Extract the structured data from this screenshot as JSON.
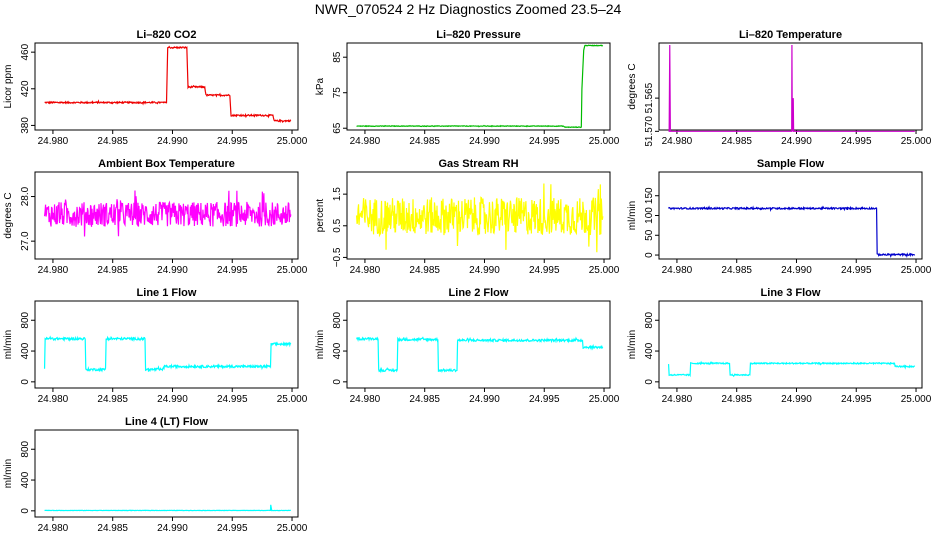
{
  "title": "NWR_070524  2 Hz Diagnostics Zoomed 23.5–24",
  "chart_data": [
    {
      "type": "line",
      "title": "Li–820 CO2",
      "ylabel": "Licor ppm",
      "color": "#ee0000",
      "xlim": [
        24.9785,
        25.0005
      ],
      "ylim": [
        375,
        470
      ],
      "xticks": [
        24.98,
        24.985,
        24.99,
        24.995,
        25.0
      ],
      "xticklabels": [
        "24.980",
        "24.985",
        "24.990",
        "24.995",
        "25.000"
      ],
      "yticks": [
        380,
        420,
        460
      ],
      "yticklabels": [
        "380",
        "420",
        "460"
      ],
      "series": [
        {
          "x": [
            24.9793,
            24.9895,
            24.9896,
            24.9912,
            24.9913,
            24.9927,
            24.9928,
            24.9948,
            24.9949,
            24.9984,
            24.9985,
            24.9999
          ],
          "y": [
            405,
            405,
            465,
            465,
            422,
            422,
            413,
            413,
            391,
            391,
            385,
            385
          ],
          "noise": 0.8
        }
      ]
    },
    {
      "type": "line",
      "title": "Li–820 Pressure",
      "ylabel": "kPa",
      "color": "#00bb00",
      "xlim": [
        24.9785,
        25.0005
      ],
      "ylim": [
        64.5,
        89
      ],
      "xticks": [
        24.98,
        24.985,
        24.99,
        24.995,
        25.0
      ],
      "xticklabels": [
        "24.980",
        "24.985",
        "24.990",
        "24.995",
        "25.000"
      ],
      "yticks": [
        65,
        75,
        85
      ],
      "yticklabels": [
        "65",
        "75",
        "85"
      ],
      "series": [
        {
          "x": [
            24.9793,
            24.9966,
            24.9967,
            24.9981,
            24.99815,
            24.9983,
            24.9984,
            24.9999
          ],
          "y": [
            65.6,
            65.6,
            65.3,
            65.3,
            76,
            87,
            88.3,
            88.3
          ],
          "noise": 0.08
        }
      ]
    },
    {
      "type": "line",
      "title": "Li–820 Temperature",
      "ylabel": "degrees C",
      "color": "#cc00cc",
      "xlim": [
        24.9785,
        25.0005
      ],
      "ylim": [
        51.5698,
        51.5567
      ],
      "xticks": [
        24.98,
        24.985,
        24.99,
        24.995,
        25.0
      ],
      "xticklabels": [
        "24.980",
        "24.985",
        "24.990",
        "24.995",
        "25.000"
      ],
      "yticks": [
        51.57,
        51.565
      ],
      "yticklabels": [
        "51.570",
        "51.565"
      ],
      "series": [
        {
          "x": [
            24.9793,
            24.97935,
            24.9794,
            24.97945,
            24.9795,
            24.9896,
            24.98962,
            24.98965,
            24.98968,
            24.9897,
            24.98973,
            24.98976,
            24.9898,
            24.9999
          ],
          "y": [
            51.57,
            51.57,
            51.557,
            51.57,
            51.57,
            51.57,
            51.557,
            51.57,
            51.568,
            51.57,
            51.565,
            51.57,
            51.57,
            51.57
          ],
          "noise": 0
        }
      ]
    },
    {
      "type": "line",
      "title": "Ambient Box Temperature",
      "ylabel": "degrees C",
      "color": "#ff00ff",
      "xlim": [
        24.9785,
        25.0005
      ],
      "ylim": [
        26.6,
        28.55
      ],
      "xticks": [
        24.98,
        24.985,
        24.99,
        24.995,
        25.0
      ],
      "xticklabels": [
        "24.980",
        "24.985",
        "24.990",
        "24.995",
        "25.000"
      ],
      "yticks": [
        27.0,
        28.0
      ],
      "yticklabels": [
        "27.0",
        "28.0"
      ],
      "series": [
        {
          "x": [
            24.9793,
            24.9999
          ],
          "y": [
            27.6,
            27.6
          ],
          "noise": 0.28
        }
      ]
    },
    {
      "type": "line",
      "title": "Gas Stream RH",
      "ylabel": "percent",
      "color": "#ffff00",
      "xlim": [
        24.9785,
        25.0005
      ],
      "ylim": [
        -0.55,
        2.2
      ],
      "xticks": [
        24.98,
        24.985,
        24.99,
        24.995,
        25.0
      ],
      "xticklabels": [
        "24.980",
        "24.985",
        "24.990",
        "24.995",
        "25.000"
      ],
      "yticks": [
        -0.5,
        0.5,
        1.5
      ],
      "yticklabels": [
        "−0.5",
        "0.5",
        "1.5"
      ],
      "series": [
        {
          "x": [
            24.9793,
            24.9999
          ],
          "y": [
            0.8,
            0.8
          ],
          "noise": 0.6
        }
      ]
    },
    {
      "type": "line",
      "title": "Sample Flow",
      "ylabel": "ml/min",
      "color": "#0000cc",
      "xlim": [
        24.9785,
        25.0005
      ],
      "ylim": [
        -10,
        210
      ],
      "xticks": [
        24.98,
        24.985,
        24.99,
        24.995,
        25.0
      ],
      "xticklabels": [
        "24.980",
        "24.985",
        "24.990",
        "24.995",
        "25.000"
      ],
      "yticks": [
        0,
        50,
        100,
        150
      ],
      "yticklabels": [
        "0",
        "50",
        "100",
        "150"
      ],
      "series": [
        {
          "x": [
            24.9793,
            24.9967,
            24.99675,
            24.9999
          ],
          "y": [
            118,
            118,
            1,
            1
          ],
          "noise": 2
        }
      ]
    },
    {
      "type": "line",
      "title": "Line 1 Flow",
      "ylabel": "ml/min",
      "color": "#00ffff",
      "xlim": [
        24.9785,
        25.0005
      ],
      "ylim": [
        -80,
        1050
      ],
      "xticks": [
        24.98,
        24.985,
        24.99,
        24.995,
        25.0
      ],
      "xticklabels": [
        "24.980",
        "24.985",
        "24.990",
        "24.995",
        "25.000"
      ],
      "yticks": [
        0,
        400,
        800
      ],
      "yticklabels": [
        "0",
        "400",
        "800"
      ],
      "series": [
        {
          "x": [
            24.9793,
            24.97935,
            24.9827,
            24.98275,
            24.9844,
            24.98445,
            24.9877,
            24.98775,
            24.9892,
            24.98925,
            24.9982,
            24.99825,
            24.9999
          ],
          "y": [
            180,
            560,
            560,
            160,
            160,
            560,
            560,
            160,
            160,
            200,
            200,
            490,
            490
          ],
          "noise": 15
        }
      ]
    },
    {
      "type": "line",
      "title": "Line 2 Flow",
      "ylabel": "ml/min",
      "color": "#00ffff",
      "xlim": [
        24.9785,
        25.0005
      ],
      "ylim": [
        -80,
        1050
      ],
      "xticks": [
        24.98,
        24.985,
        24.99,
        24.995,
        25.0
      ],
      "xticklabels": [
        "24.980",
        "24.985",
        "24.990",
        "24.995",
        "25.000"
      ],
      "yticks": [
        0,
        400,
        800
      ],
      "yticklabels": [
        "0",
        "400",
        "800"
      ],
      "series": [
        {
          "x": [
            24.9793,
            24.9811,
            24.98115,
            24.9827,
            24.98275,
            24.9861,
            24.98615,
            24.9877,
            24.98775,
            24.9982,
            24.99825,
            24.9999
          ],
          "y": [
            560,
            560,
            150,
            150,
            550,
            550,
            150,
            150,
            540,
            540,
            450,
            450
          ],
          "noise": 15
        }
      ]
    },
    {
      "type": "line",
      "title": "Line 3 Flow",
      "ylabel": "ml/min",
      "color": "#00ffff",
      "xlim": [
        24.9785,
        25.0005
      ],
      "ylim": [
        -80,
        1050
      ],
      "xticks": [
        24.98,
        24.985,
        24.99,
        24.995,
        25.0
      ],
      "xticklabels": [
        "24.980",
        "24.985",
        "24.990",
        "24.995",
        "25.000"
      ],
      "yticks": [
        0,
        400,
        800
      ],
      "yticklabels": [
        "0",
        "400",
        "800"
      ],
      "series": [
        {
          "x": [
            24.9793,
            24.97935,
            24.9811,
            24.98115,
            24.9844,
            24.98445,
            24.9861,
            24.98615,
            24.9982,
            24.99825,
            24.9999
          ],
          "y": [
            230,
            90,
            90,
            240,
            240,
            90,
            90,
            240,
            240,
            200,
            200
          ],
          "noise": 8
        }
      ]
    },
    {
      "type": "line",
      "title": "Line 4 (LT) Flow",
      "ylabel": "ml/min",
      "color": "#00ffff",
      "xlim": [
        24.9785,
        25.0005
      ],
      "ylim": [
        -80,
        1050
      ],
      "xticks": [
        24.98,
        24.985,
        24.99,
        24.995,
        25.0
      ],
      "xticklabels": [
        "24.980",
        "24.985",
        "24.990",
        "24.995",
        "25.000"
      ],
      "yticks": [
        0,
        400,
        800
      ],
      "yticklabels": [
        "0",
        "400",
        "800"
      ],
      "series": [
        {
          "x": [
            24.9793,
            24.9982,
            24.99822,
            24.9983,
            24.9999
          ],
          "y": [
            5,
            5,
            80,
            5,
            5
          ],
          "noise": 2
        }
      ]
    }
  ]
}
